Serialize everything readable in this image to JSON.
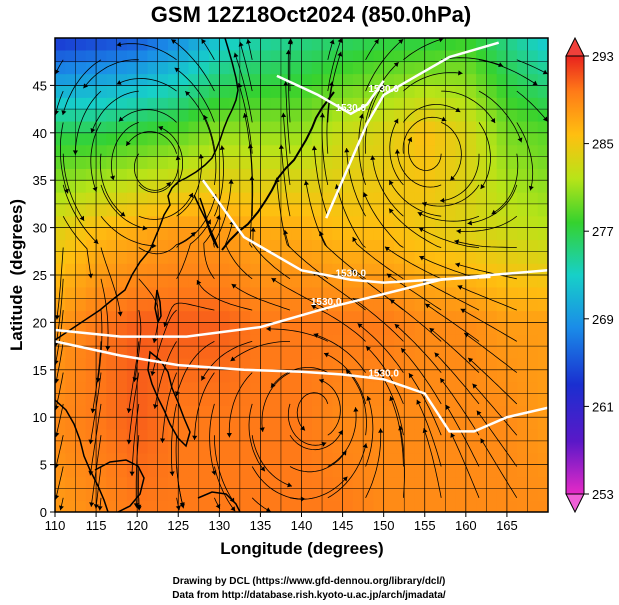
{
  "title": "GSM 12Z18Oct2024 (850.0hPa)",
  "chart_data": {
    "type": "heatmap",
    "title": "GSM 12Z18Oct2024 (850.0hPa)",
    "xlabel": "Longitude (degrees)",
    "ylabel": "Latitude  (degrees)",
    "xlim": [
      110,
      170
    ],
    "ylim": [
      0,
      50
    ],
    "x_ticks": [
      "110",
      "115",
      "120",
      "125",
      "130",
      "135",
      "140",
      "145",
      "150",
      "155",
      "160",
      "165"
    ],
    "y_ticks": [
      "0",
      "5",
      "10",
      "15",
      "20",
      "25",
      "30",
      "35",
      "40",
      "45"
    ],
    "grid": true,
    "colorbar": {
      "min": 253,
      "max": 293,
      "ticks": [
        "293",
        "285",
        "277",
        "269",
        "261",
        "253"
      ]
    },
    "contours": [
      {
        "label": "1530.0",
        "value": 1530,
        "path": [
          [
            110,
            18
          ],
          [
            118,
            16.5
          ],
          [
            125,
            15.5
          ],
          [
            133,
            15
          ],
          [
            140,
            14.8
          ],
          [
            145,
            14.5
          ],
          [
            150,
            14
          ],
          [
            155,
            12.5
          ],
          [
            158,
            8.5
          ],
          [
            161,
            8.5
          ],
          [
            165,
            10
          ],
          [
            170,
            11
          ]
        ]
      },
      {
        "label": "1530.0",
        "value": 1530,
        "path": [
          [
            110,
            19.2
          ],
          [
            118,
            18.5
          ],
          [
            126,
            18.5
          ],
          [
            135,
            19.5
          ],
          [
            143,
            21.5
          ],
          [
            150,
            23
          ],
          [
            157,
            24.5
          ],
          [
            163,
            25
          ],
          [
            170,
            25.5
          ]
        ]
      },
      {
        "label": "1530.0",
        "value": 1530,
        "path": [
          [
            128,
            35
          ],
          [
            133,
            29
          ],
          [
            140,
            25.5
          ],
          [
            146,
            24.5
          ],
          [
            150,
            24.2
          ],
          [
            156,
            24.5
          ],
          [
            163,
            24.8
          ]
        ]
      },
      {
        "label": "1530.0",
        "value": 1530,
        "path": [
          [
            143,
            31
          ],
          [
            146,
            37
          ],
          [
            148,
            41
          ],
          [
            150,
            44
          ],
          [
            154,
            46
          ],
          [
            158,
            48
          ],
          [
            164,
            49.5
          ]
        ]
      },
      {
        "label": "1530.0",
        "value": 1530,
        "path": [
          [
            137,
            46
          ],
          [
            142,
            44
          ],
          [
            146,
            42
          ],
          [
            148,
            43
          ],
          [
            150,
            45.5
          ]
        ]
      }
    ],
    "lows": [
      [
        142,
        11
      ],
      [
        155,
        38
      ],
      [
        122,
        36.5
      ]
    ],
    "temperature_field": [
      {
        "lat": 0,
        "lon_values": [
          288,
          289,
          290,
          290,
          290,
          290,
          290,
          290,
          289,
          289,
          289,
          289,
          289
        ]
      },
      {
        "lat": 10,
        "lon_values": [
          289,
          290,
          291,
          290,
          290,
          290,
          290,
          289,
          289,
          289,
          289,
          289,
          288
        ]
      },
      {
        "lat": 20,
        "lon_values": [
          288,
          290,
          291,
          291,
          291,
          290,
          290,
          290,
          290,
          289,
          289,
          288,
          288
        ]
      },
      {
        "lat": 30,
        "lon_values": [
          284,
          286,
          287,
          288,
          288,
          287,
          287,
          286,
          286,
          285,
          284,
          283,
          282
        ]
      },
      {
        "lat": 40,
        "lon_values": [
          277,
          277,
          278,
          279,
          281,
          281,
          281,
          283,
          284,
          286,
          284,
          280,
          279
        ]
      },
      {
        "lat": 50,
        "lon_values": [
          263,
          264,
          265,
          268,
          272,
          274,
          275,
          276,
          277,
          277,
          278,
          275,
          272
        ]
      }
    ]
  },
  "credits": [
    "Drawing by DCL (https://www.gfd-dennou.org/library/dcl/)",
    "Data from http://database.rish.kyoto-u.ac.jp/arch/jmadata/"
  ],
  "colors": {
    "contour": "#ffffff",
    "coast": "#000000",
    "streamline": "#000000"
  }
}
